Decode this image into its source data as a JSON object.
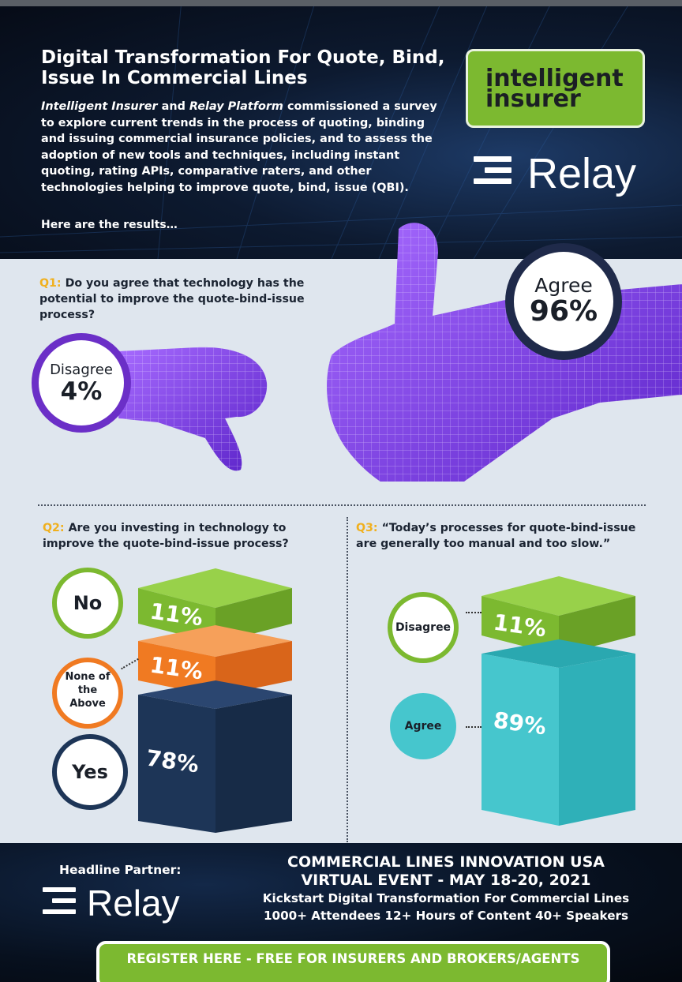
{
  "header": {
    "title": "Digital Transformation For Quote, Bind, Issue In Commercial Lines",
    "intro_brand1": "Intelligent Insurer",
    "intro_and": "and",
    "intro_brand2": "Relay Platform",
    "intro_rest": "commissioned a survey to explore current trends in the process of quoting, binding and issuing commercial insurance policies, and to assess the adoption of new tools and techniques, including instant quoting, rating APIs, comparative raters, and other technologies helping to improve quote, bind, issue (QBI).",
    "results_label": "Here are the results…",
    "logo_line1": "intelligent",
    "logo_line2": "insurer",
    "relay_logo": "Relay"
  },
  "q1": {
    "num": "Q1:",
    "text": "Do you agree that technology has the potential to improve the quote-bind-issue process?",
    "agree_label": "Agree",
    "agree_value": "96%",
    "disagree_label": "Disagree",
    "disagree_value": "4%"
  },
  "q2": {
    "num": "Q2:",
    "text": "Are you investing in technology to improve the quote-bind-issue process?",
    "answers": [
      {
        "label": "No",
        "value": "11%",
        "share": 11
      },
      {
        "label": "None of the Above",
        "value": "11%",
        "share": 11
      },
      {
        "label": "Yes",
        "value": "78%",
        "share": 78
      }
    ]
  },
  "q3": {
    "num": "Q3:",
    "text": "“Today’s processes for quote-bind-issue are generally too manual and too slow.”",
    "answers": [
      {
        "label": "Disagree",
        "value": "11%",
        "share": 11
      },
      {
        "label": "Agree",
        "value": "89%",
        "share": 89
      }
    ]
  },
  "footer": {
    "partner_label": "Headline Partner:",
    "relay_logo": "Relay",
    "event_line1": "COMMERCIAL LINES INNOVATION USA",
    "event_line2": "VIRTUAL EVENT - MAY 18-20, 2021",
    "event_line3": "Kickstart Digital Transformation For Commercial Lines",
    "event_line4": "1000+ Attendees 12+ Hours of Content 40+ Speakers",
    "register": "REGISTER HERE - FREE FOR INSURERS AND BROKERS/AGENTS"
  },
  "colors": {
    "green": "#7cb930",
    "orange": "#f07a22",
    "navy": "#1d3557",
    "teal": "#3fbfc6",
    "purple": "#7b3fe0",
    "q_number": "#f0b01e"
  }
}
